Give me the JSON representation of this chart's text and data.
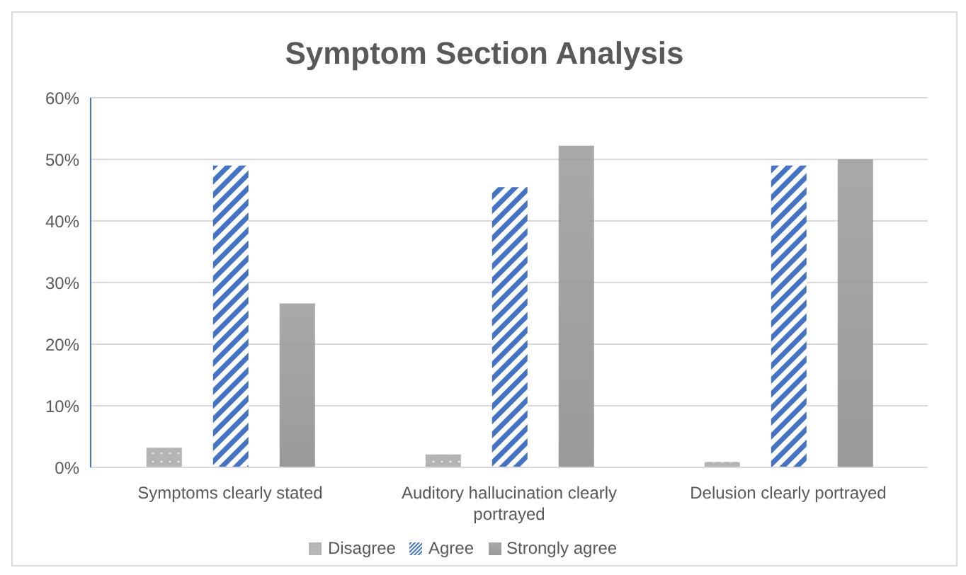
{
  "chart_data": {
    "type": "bar",
    "title": "Symptom Section Analysis",
    "categories": [
      "Symptoms clearly stated",
      "Auditory hallucination clearly portrayed",
      "Delusion clearly portrayed"
    ],
    "series": [
      {
        "name": "Disagree",
        "color": "#b4b4b4",
        "values": [
          3.2,
          2.1,
          0.9
        ]
      },
      {
        "name": "Agree",
        "color": "#4472c4",
        "values": [
          49,
          45.5,
          49
        ]
      },
      {
        "name": "Strongly agree",
        "color": "#9a9a9a",
        "values": [
          26.6,
          52.2,
          50.0
        ]
      }
    ],
    "ylim": [
      0,
      60
    ],
    "yticks": [
      {
        "value": 0,
        "label": "0%"
      },
      {
        "value": 10,
        "label": "10%"
      },
      {
        "value": 20,
        "label": "20%"
      },
      {
        "value": 30,
        "label": "30%"
      },
      {
        "value": 40,
        "label": "40%"
      },
      {
        "value": 50,
        "label": "50%"
      },
      {
        "value": 60,
        "label": "60%"
      }
    ],
    "grid": "y",
    "legend": "bottom"
  }
}
